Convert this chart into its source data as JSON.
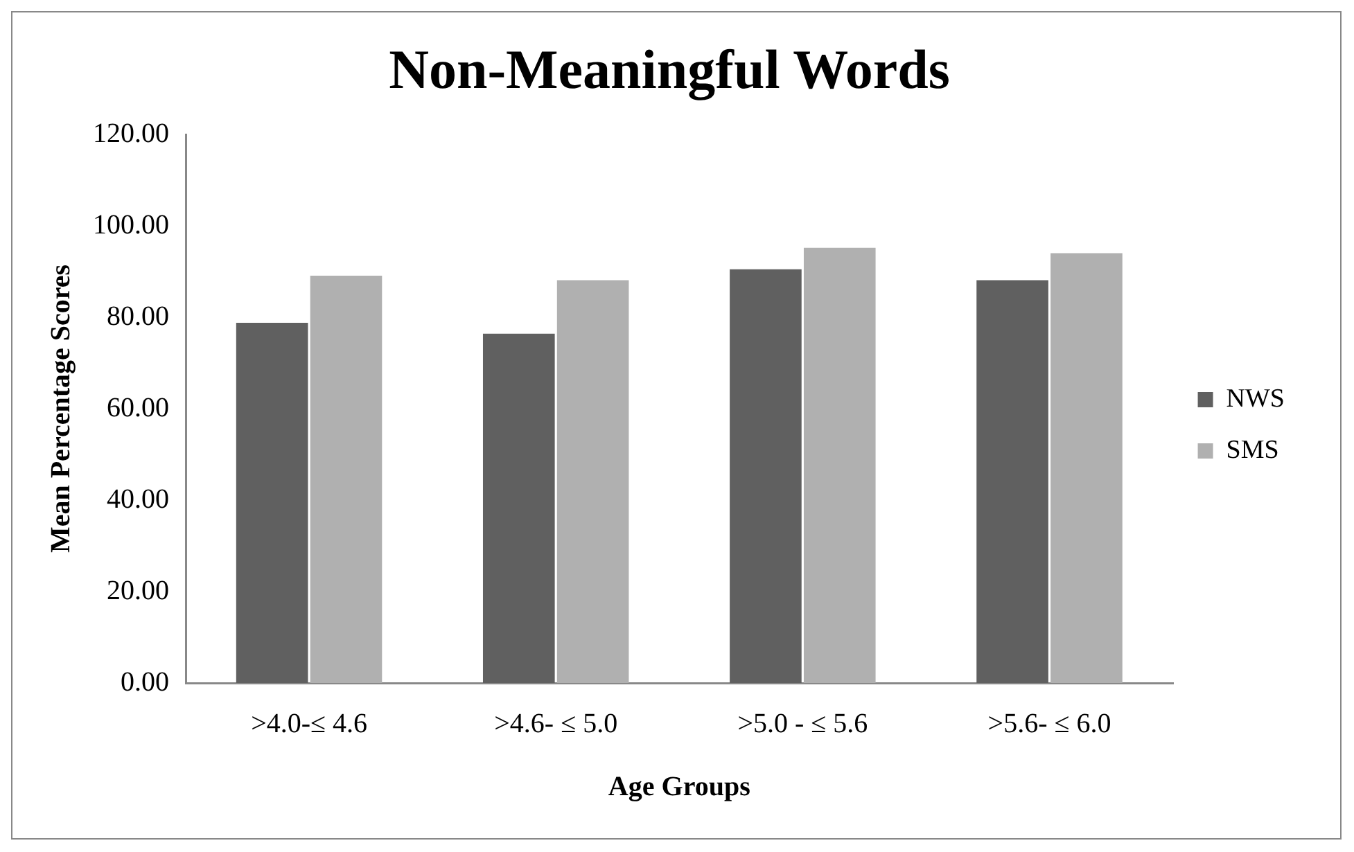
{
  "chart_data": {
    "type": "bar",
    "title": "Non-Meaningful Words",
    "xlabel": "Age Groups",
    "ylabel": "Mean Percentage Scores",
    "categories": [
      ">4.0-≤ 4.6",
      ">4.6- ≤ 5.0",
      ">5.0 - ≤ 5.6",
      ">5.6- ≤ 6.0"
    ],
    "series": [
      {
        "name": "NWS",
        "color": "#606060",
        "values": [
          78.8,
          76.4,
          90.5,
          88.1
        ]
      },
      {
        "name": "SMS",
        "color": "#b0b0b0",
        "values": [
          89.1,
          88.1,
          95.2,
          94.0
        ]
      }
    ],
    "ylim": [
      0,
      120
    ],
    "yticks": [
      {
        "value": 0,
        "label": "0.00"
      },
      {
        "value": 20,
        "label": "20.00"
      },
      {
        "value": 40,
        "label": "40.00"
      },
      {
        "value": 60,
        "label": "60.00"
      },
      {
        "value": 80,
        "label": "80.00"
      },
      {
        "value": 100,
        "label": "100.00"
      },
      {
        "value": 120,
        "label": "120.00"
      }
    ],
    "grid": false,
    "legend": "right"
  }
}
